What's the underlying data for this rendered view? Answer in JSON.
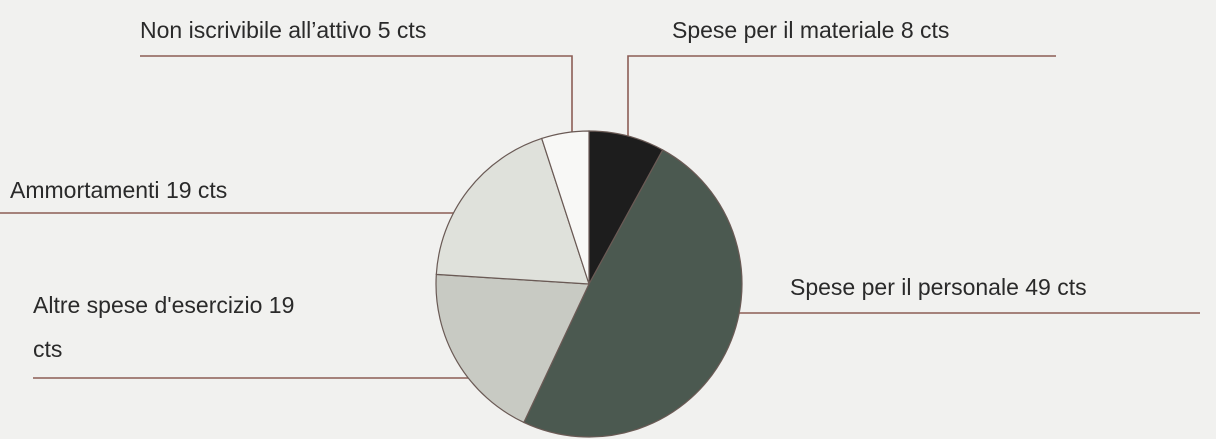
{
  "chart_data": {
    "type": "pie",
    "categories": [
      "Spese per il materiale",
      "Spese per il personale",
      "Altre spese d'esercizio",
      "Ammortamenti",
      "Non iscrivibile all’attivo"
    ],
    "values": [
      8,
      49,
      19,
      19,
      5
    ],
    "value_labels": [
      "8 cts",
      "49 cts",
      "19 cts",
      "19 cts",
      "5 cts"
    ],
    "colors": [
      "#1d1d1d",
      "#4b5950",
      "#c8cac3",
      "#dfe1db",
      "#f8f8f6"
    ]
  }
}
